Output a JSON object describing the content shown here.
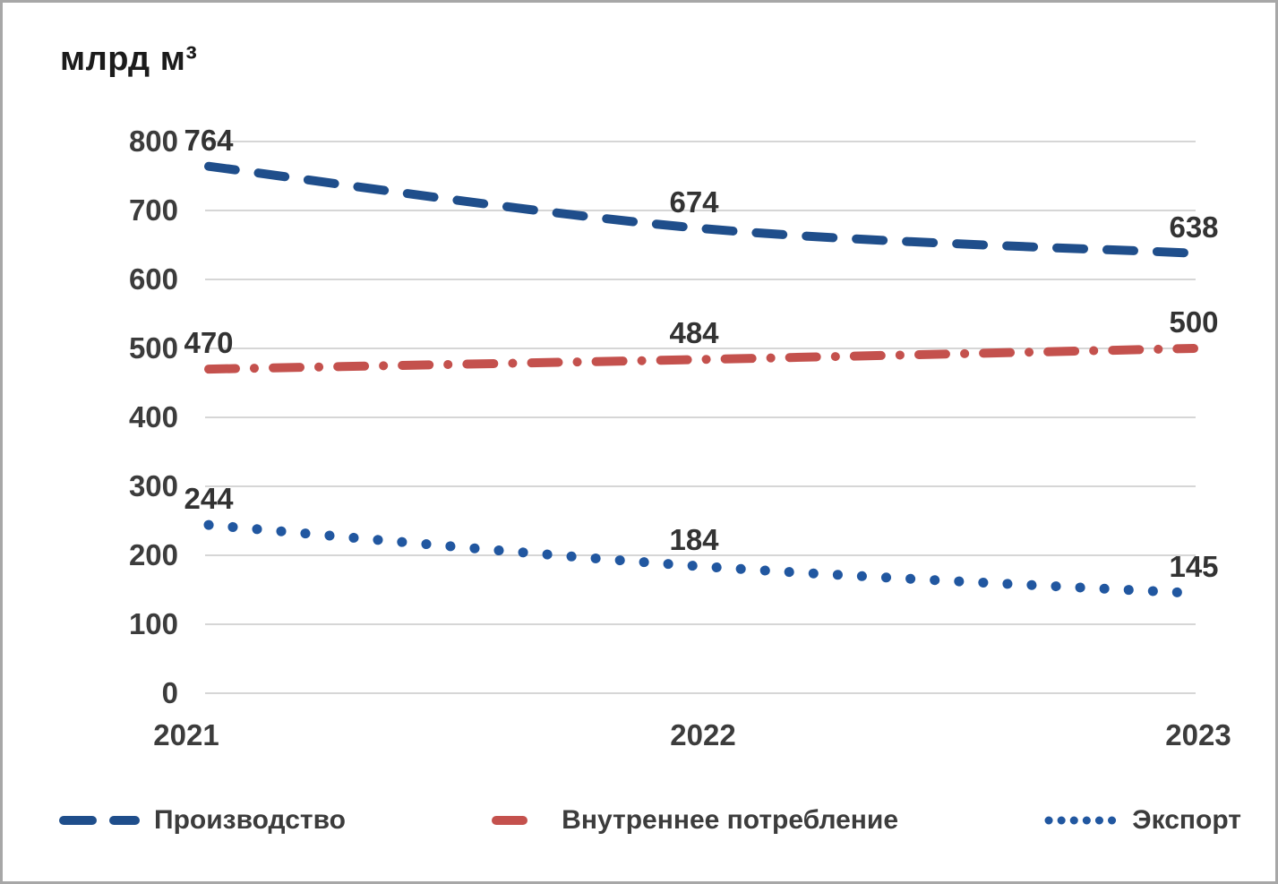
{
  "chart_data": {
    "type": "line",
    "title": "млрд м³",
    "categories": [
      "2021",
      "2022",
      "2023"
    ],
    "series": [
      {
        "name": "Производство",
        "values": [
          764,
          674,
          638
        ],
        "color": "#1f4e8b",
        "dash": "dashed"
      },
      {
        "name": "Внутреннее потребление",
        "values": [
          470,
          484,
          500
        ],
        "color": "#c4514d",
        "dash": "dash-dot"
      },
      {
        "name": "Экспорт",
        "values": [
          244,
          184,
          145
        ],
        "color": "#2157a0",
        "dash": "dotted"
      }
    ],
    "yticks": [
      0,
      100,
      200,
      300,
      400,
      500,
      600,
      700,
      800
    ],
    "ylim": [
      0,
      800
    ],
    "xlabel": "",
    "ylabel": "млрд м³",
    "grid": true,
    "gridline_color": "#d6d6d6",
    "legend_position": "bottom",
    "data_labels_shown": true
  }
}
